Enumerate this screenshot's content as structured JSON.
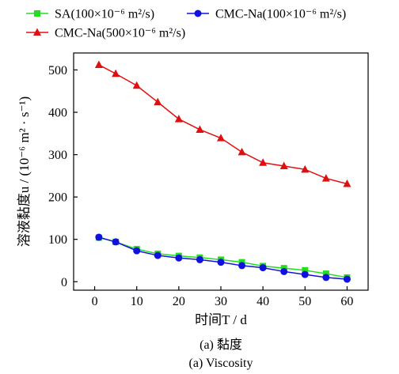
{
  "chart_data": {
    "type": "line",
    "x": [
      1,
      5,
      10,
      15,
      20,
      25,
      30,
      35,
      40,
      45,
      50,
      55,
      60
    ],
    "series": [
      {
        "name": "SA(100×10⁻⁶ m²/s)",
        "color": "#22dd22",
        "marker": "square",
        "values": [
          104,
          94,
          77,
          66,
          61,
          57,
          52,
          46,
          37,
          32,
          27,
          19,
          10
        ]
      },
      {
        "name": "CMC-Na(100×10⁻⁶ m²/s)",
        "color": "#1010e0",
        "marker": "circle",
        "values": [
          105,
          94,
          73,
          62,
          56,
          52,
          46,
          38,
          33,
          24,
          17,
          10,
          6
        ]
      },
      {
        "name": "CMC-Na(500×10⁻⁶ m²/s)",
        "color": "#e01010",
        "marker": "triangle",
        "values": [
          512,
          491,
          463,
          424,
          384,
          359,
          339,
          306,
          281,
          273,
          265,
          244,
          231
        ]
      }
    ],
    "xlabel": "时间T / d",
    "ylabel": "溶液黏度u / (10⁻⁶ m² · s⁻¹)",
    "xlim": [
      -5,
      65
    ],
    "ylim": [
      -20,
      540
    ],
    "xticks": [
      0,
      10,
      20,
      30,
      40,
      50,
      60
    ],
    "yticks": [
      0,
      100,
      200,
      300,
      400,
      500
    ],
    "grid": false,
    "legend_position": "top"
  },
  "caption": {
    "zh": "(a) 黏度",
    "en": "(a) Viscosity"
  }
}
